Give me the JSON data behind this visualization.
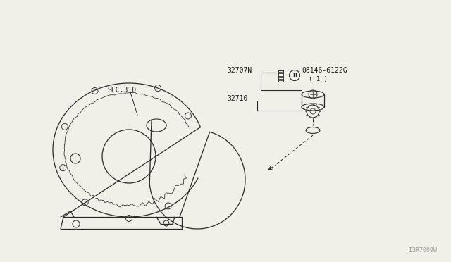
{
  "bg_color": "#f0efe8",
  "line_color": "#2a2a2a",
  "text_color": "#1a1a1a",
  "labels": {
    "sec310": "SEC.310",
    "part1": "32707N",
    "part2": "32710",
    "part3": "08146-6122G",
    "part3b": "( 1 )",
    "part3_circle": "B",
    "watermark": ".I3R7009W"
  },
  "font_size_label": 7,
  "font_size_watermark": 6
}
